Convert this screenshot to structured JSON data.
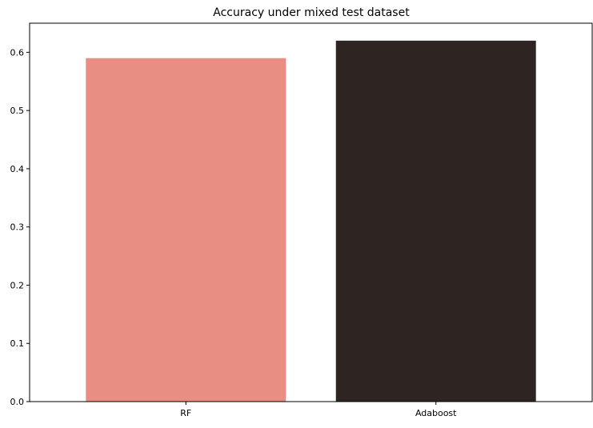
{
  "chart_data": {
    "type": "bar",
    "title": "Accuracy under mixed test dataset",
    "xlabel": "",
    "ylabel": "",
    "categories": [
      "RF",
      "Adaboost"
    ],
    "values": [
      0.59,
      0.62
    ],
    "colors": [
      "#e88e82",
      "#2e2422"
    ],
    "ylim": [
      0,
      0.65
    ],
    "yticks": [
      "0.0",
      "0.1",
      "0.2",
      "0.3",
      "0.4",
      "0.5",
      "0.6"
    ],
    "grid": false,
    "legend": "none"
  }
}
